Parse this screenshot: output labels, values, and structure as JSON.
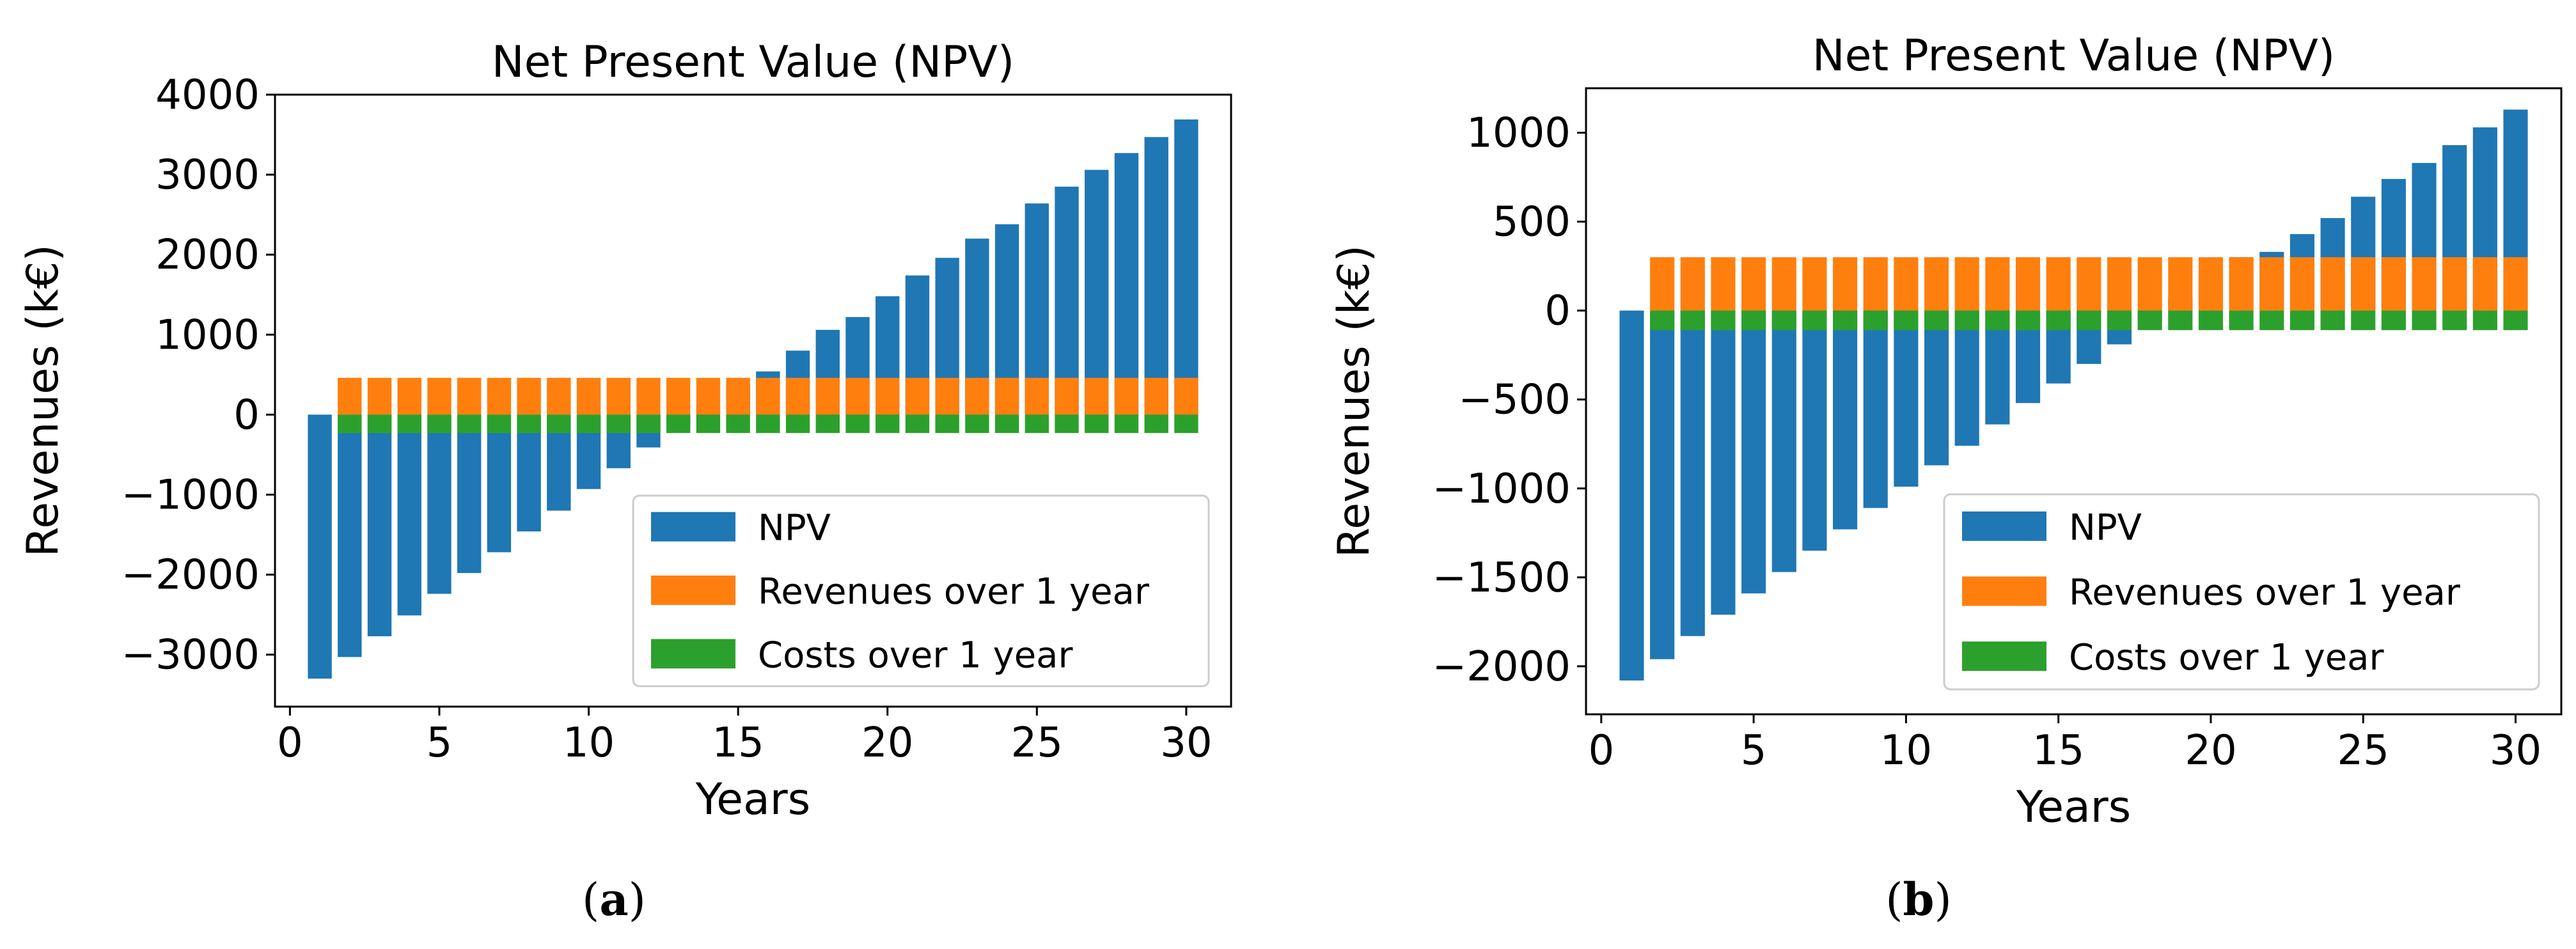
{
  "panels": [
    {
      "caption": {
        "open": "(",
        "letter": "a",
        "close": ")"
      },
      "chart_data": {
        "type": "bar",
        "title": "Net Present Value (NPV)",
        "xlabel": "Years",
        "ylabel": "Revenues (k€)",
        "xlim": [
          -0.5,
          31.5
        ],
        "ylim": [
          -3650,
          4000
        ],
        "xticks": [
          0,
          5,
          10,
          15,
          20,
          25,
          30
        ],
        "xtick_labels": [
          "0",
          "5",
          "10",
          "15",
          "20",
          "25",
          "30"
        ],
        "yticks": [
          -3000,
          -2000,
          -1000,
          0,
          1000,
          2000,
          3000,
          4000
        ],
        "ytick_labels": [
          "−3000",
          "−2000",
          "−1000",
          "0",
          "1000",
          "2000",
          "3000",
          "4000"
        ],
        "legend_position": "lower-right",
        "x": [
          1,
          2,
          3,
          4,
          5,
          6,
          7,
          8,
          9,
          10,
          11,
          12,
          13,
          14,
          15,
          16,
          17,
          18,
          19,
          20,
          21,
          22,
          23,
          24,
          25,
          26,
          27,
          28,
          29,
          30
        ],
        "series": [
          {
            "name": "NPV",
            "color": "#1f77b4",
            "values": [
              -3300,
              -3030,
              -2770,
              -2510,
              -2240,
              -1980,
              -1720,
              -1460,
              -1200,
              -930,
              -670,
              -410,
              -150,
              110,
              370,
              540,
              800,
              1060,
              1220,
              1480,
              1740,
              1960,
              2200,
              2380,
              2640,
              2850,
              3060,
              3270,
              3470,
              3690
            ]
          },
          {
            "name": "Revenues over 1 year",
            "color": "#ff7f0e",
            "values": [
              null,
              460,
              460,
              460,
              460,
              460,
              460,
              460,
              460,
              460,
              460,
              460,
              460,
              460,
              460,
              460,
              460,
              460,
              460,
              460,
              460,
              460,
              460,
              460,
              460,
              460,
              460,
              460,
              460,
              460
            ]
          },
          {
            "name": "Costs over 1 year",
            "color": "#2ca02c",
            "values": [
              null,
              -230,
              -230,
              -230,
              -230,
              -230,
              -230,
              -230,
              -230,
              -230,
              -230,
              -230,
              -230,
              -230,
              -230,
              -230,
              -230,
              -230,
              -230,
              -230,
              -230,
              -230,
              -230,
              -230,
              -230,
              -230,
              -230,
              -230,
              -230,
              -230
            ]
          }
        ]
      }
    },
    {
      "caption": {
        "open": "(",
        "letter": "b",
        "close": ")"
      },
      "chart_data": {
        "type": "bar",
        "title": "Net Present Value (NPV)",
        "xlabel": "Years",
        "ylabel": "Revenues (k€)",
        "xlim": [
          -0.5,
          31.5
        ],
        "ylim": [
          -2270,
          1250
        ],
        "xticks": [
          0,
          5,
          10,
          15,
          20,
          25,
          30
        ],
        "xtick_labels": [
          "0",
          "5",
          "10",
          "15",
          "20",
          "25",
          "30"
        ],
        "yticks": [
          -2000,
          -1500,
          -1000,
          -500,
          0,
          500,
          1000
        ],
        "ytick_labels": [
          "−2000",
          "−1500",
          "−1000",
          "−500",
          "0",
          "500",
          "1000"
        ],
        "legend_position": "lower-right",
        "x": [
          1,
          2,
          3,
          4,
          5,
          6,
          7,
          8,
          9,
          10,
          11,
          12,
          13,
          14,
          15,
          16,
          17,
          18,
          19,
          20,
          21,
          22,
          23,
          24,
          25,
          26,
          27,
          28,
          29,
          30
        ],
        "series": [
          {
            "name": "NPV",
            "color": "#1f77b4",
            "values": [
              -2080,
              -1960,
              -1830,
              -1710,
              -1590,
              -1470,
              -1350,
              -1230,
              -1110,
              -990,
              -870,
              -760,
              -640,
              -520,
              -410,
              -300,
              -190,
              -60,
              70,
              190,
              300,
              330,
              430,
              520,
              640,
              740,
              830,
              930,
              1030,
              1130
            ]
          },
          {
            "name": "Revenues over 1 year",
            "color": "#ff7f0e",
            "values": [
              null,
              300,
              300,
              300,
              300,
              300,
              300,
              300,
              300,
              300,
              300,
              300,
              300,
              300,
              300,
              300,
              300,
              300,
              300,
              300,
              300,
              300,
              300,
              300,
              300,
              300,
              300,
              300,
              300,
              300
            ]
          },
          {
            "name": "Costs over 1 year",
            "color": "#2ca02c",
            "values": [
              null,
              -110,
              -110,
              -110,
              -110,
              -110,
              -110,
              -110,
              -110,
              -110,
              -110,
              -110,
              -110,
              -110,
              -110,
              -110,
              -110,
              -110,
              -110,
              -110,
              -110,
              -110,
              -110,
              -110,
              -110,
              -110,
              -110,
              -110,
              -110,
              -110
            ]
          }
        ]
      }
    }
  ]
}
